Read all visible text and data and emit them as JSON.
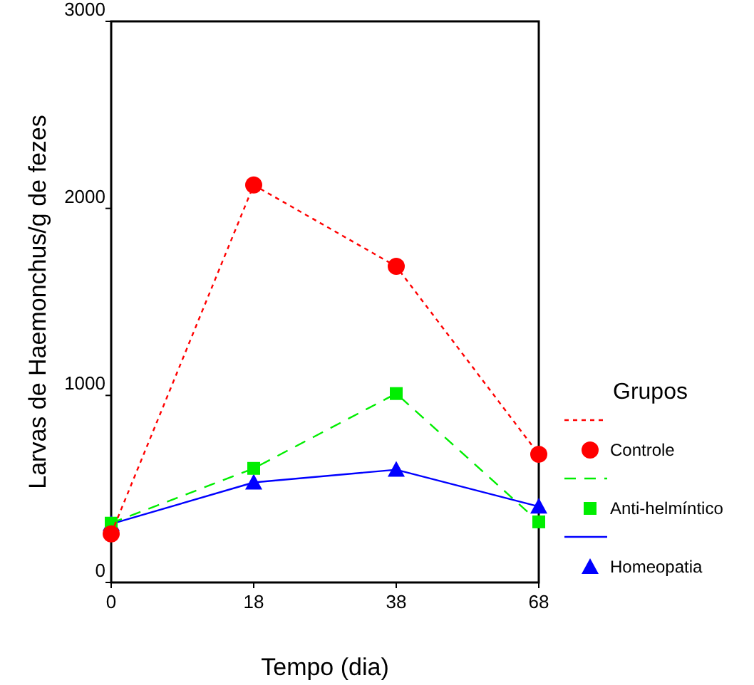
{
  "chart_data": {
    "type": "line",
    "xlabel": "Tempo (dia)",
    "ylabel": "Larvas de Haemonchus/g de fezes",
    "legend_title": "Grupos",
    "legend": "right",
    "categories": [
      "0",
      "18",
      "38",
      "68"
    ],
    "ylim": [
      0,
      3000
    ],
    "yticks": [
      0,
      1000,
      2000,
      3000
    ],
    "grid": false,
    "series": [
      {
        "name": "Controle",
        "color": "#ff0000",
        "values": [
          260,
          2125,
          1690,
          685
        ],
        "marker": "circle",
        "line_style": "dotted"
      },
      {
        "name": "Anti-helmíntico",
        "color": "#00ee00",
        "values": [
          317,
          610,
          1010,
          324
        ],
        "marker": "square",
        "line_style": "dashed"
      },
      {
        "name": "Homeopatia",
        "color": "#0000ff",
        "values": [
          313,
          535,
          603,
          406
        ],
        "marker": "triangle",
        "line_style": "solid"
      }
    ]
  }
}
